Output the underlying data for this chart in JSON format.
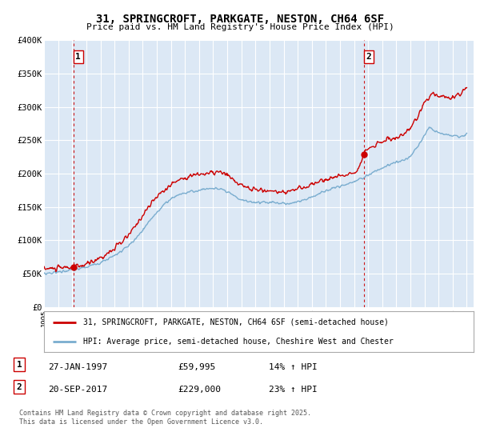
{
  "title": "31, SPRINGCROFT, PARKGATE, NESTON, CH64 6SF",
  "subtitle": "Price paid vs. HM Land Registry's House Price Index (HPI)",
  "legend_line1": "31, SPRINGCROFT, PARKGATE, NESTON, CH64 6SF (semi-detached house)",
  "legend_line2": "HPI: Average price, semi-detached house, Cheshire West and Chester",
  "footer": "Contains HM Land Registry data © Crown copyright and database right 2025.\nThis data is licensed under the Open Government Licence v3.0.",
  "marker1_label": "1",
  "marker1_date": "27-JAN-1997",
  "marker1_price": "£59,995",
  "marker1_hpi": "14% ↑ HPI",
  "marker2_label": "2",
  "marker2_date": "20-SEP-2017",
  "marker2_price": "£229,000",
  "marker2_hpi": "23% ↑ HPI",
  "red_color": "#cc0000",
  "blue_color": "#7aadcf",
  "marker_line_color": "#cc0000",
  "background_color": "#dce8f5",
  "ylim": [
    0,
    400000
  ],
  "yticks": [
    0,
    50000,
    100000,
    150000,
    200000,
    250000,
    300000,
    350000,
    400000
  ],
  "ytick_labels": [
    "£0",
    "£50K",
    "£100K",
    "£150K",
    "£200K",
    "£250K",
    "£300K",
    "£350K",
    "£400K"
  ],
  "xmin": 1995.0,
  "xmax": 2025.5,
  "marker1_x": 1997.07,
  "marker1_y": 59995,
  "marker2_x": 2017.72,
  "marker2_y": 229000
}
